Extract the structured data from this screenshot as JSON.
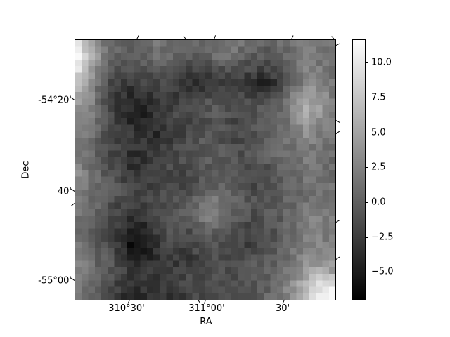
{
  "figure": {
    "background": "#ffffff",
    "colormap": "gray",
    "frame_color": "#000000"
  },
  "chart_data": {
    "type": "heatmap",
    "title": "",
    "xlabel": "RA",
    "ylabel": "Dec",
    "x_tick_labels": [
      "310°30'",
      "311°00'",
      "30'"
    ],
    "y_tick_labels": [
      "-54°20'",
      "40'",
      "-55°00'"
    ],
    "colorbar": {
      "tick_labels": [
        "10.0",
        "7.5",
        "5.0",
        "2.5",
        "0.0",
        "−2.5",
        "−5.0"
      ],
      "vmin": -7.1,
      "vmax": 11.7,
      "orientation": "vertical",
      "top_color": "#fdfdfd",
      "bottom_color": "#000000"
    },
    "grid_rows": 20,
    "grid_cols": 20,
    "render_resolution": 40,
    "noise_amplitude": 1.1,
    "values_grid": [
      [
        9.5,
        5.0,
        1.5,
        0.5,
        0.0,
        0.5,
        1.5,
        1.0,
        0.5,
        0.0,
        1.0,
        2.0,
        1.5,
        0.5,
        0.0,
        1.0,
        1.5,
        2.5,
        2.0,
        1.5
      ],
      [
        10.5,
        6.0,
        1.0,
        0.0,
        -0.5,
        0.0,
        1.0,
        0.5,
        -0.5,
        -1.0,
        0.5,
        1.5,
        0.5,
        -0.5,
        -1.0,
        0.0,
        1.0,
        2.0,
        1.5,
        1.0
      ],
      [
        9.0,
        4.0,
        0.0,
        -1.0,
        -1.5,
        -1.0,
        -0.5,
        -1.0,
        -1.5,
        -2.5,
        -2.0,
        -1.0,
        -1.5,
        -2.0,
        -2.5,
        -1.5,
        0.5,
        2.5,
        2.0,
        1.5
      ],
      [
        7.0,
        3.0,
        -1.0,
        -2.5,
        -3.0,
        -2.5,
        -2.0,
        -2.5,
        -3.5,
        -4.0,
        -3.0,
        -2.5,
        -3.0,
        -4.0,
        -4.5,
        -2.5,
        0.0,
        3.0,
        2.5,
        1.5
      ],
      [
        5.0,
        2.5,
        -1.5,
        -3.0,
        -4.0,
        -3.5,
        -2.5,
        -3.0,
        -2.5,
        -2.0,
        -1.5,
        -1.0,
        -1.5,
        -2.0,
        -2.5,
        -1.0,
        2.0,
        5.0,
        4.0,
        2.0
      ],
      [
        4.0,
        2.0,
        -1.0,
        -3.0,
        -4.5,
        -4.0,
        -3.0,
        -2.0,
        -1.5,
        -1.0,
        -0.5,
        -1.0,
        -1.5,
        -1.0,
        -0.5,
        0.0,
        2.5,
        5.5,
        4.5,
        2.5
      ],
      [
        3.0,
        1.5,
        -0.5,
        -2.5,
        -4.0,
        -4.5,
        -3.5,
        -2.5,
        -2.0,
        -1.5,
        -1.0,
        -1.5,
        -2.5,
        -1.5,
        -0.5,
        0.5,
        2.0,
        4.0,
        3.0,
        2.0
      ],
      [
        2.5,
        1.0,
        -1.0,
        -2.0,
        -3.0,
        -3.5,
        -4.0,
        -3.0,
        -2.0,
        -1.0,
        -0.5,
        -1.5,
        -2.0,
        -1.0,
        0.0,
        0.5,
        1.5,
        3.0,
        2.0,
        1.5
      ],
      [
        2.0,
        0.5,
        -1.5,
        -2.5,
        -3.5,
        -3.0,
        -2.5,
        -2.0,
        -1.5,
        -0.5,
        0.0,
        -1.0,
        -1.5,
        -0.5,
        0.5,
        1.0,
        1.0,
        2.0,
        1.5,
        1.0
      ],
      [
        2.5,
        1.0,
        -1.0,
        -2.0,
        -4.0,
        -3.5,
        -2.0,
        -1.5,
        -1.0,
        -1.5,
        -0.5,
        0.0,
        -0.5,
        -1.5,
        -1.0,
        0.0,
        0.5,
        1.5,
        1.0,
        1.0
      ],
      [
        3.0,
        1.5,
        -0.5,
        -1.5,
        -3.0,
        -2.5,
        -1.5,
        -2.5,
        -2.0,
        -1.0,
        0.0,
        -0.5,
        -1.0,
        -2.0,
        -1.5,
        -0.5,
        0.5,
        1.5,
        1.5,
        1.0
      ],
      [
        2.5,
        1.0,
        0.0,
        -1.0,
        -2.0,
        -3.0,
        -2.0,
        -1.5,
        -1.5,
        -0.5,
        0.5,
        0.0,
        -1.0,
        -1.5,
        -1.0,
        -0.5,
        0.0,
        1.0,
        1.0,
        1.5
      ],
      [
        2.0,
        0.5,
        -0.5,
        -2.0,
        -2.5,
        -2.0,
        -1.5,
        -1.0,
        -0.5,
        1.0,
        2.0,
        1.5,
        0.0,
        -1.0,
        -0.5,
        0.0,
        0.5,
        1.5,
        2.0,
        2.0
      ],
      [
        1.5,
        0.0,
        -1.0,
        -2.5,
        -3.5,
        -3.0,
        -2.0,
        -1.5,
        -0.5,
        1.5,
        2.5,
        1.5,
        -0.5,
        -1.5,
        -1.0,
        -0.5,
        0.5,
        2.0,
        2.5,
        2.0
      ],
      [
        1.0,
        -0.5,
        -1.5,
        -3.0,
        -5.0,
        -4.5,
        -2.5,
        -1.0,
        -1.5,
        -0.5,
        0.0,
        -0.5,
        -1.5,
        -2.0,
        -1.5,
        -0.5,
        0.5,
        2.0,
        2.0,
        1.5
      ],
      [
        1.5,
        0.0,
        -1.0,
        -3.5,
        -6.0,
        -5.5,
        -3.0,
        -2.0,
        -2.5,
        -1.5,
        -1.0,
        -1.5,
        -2.0,
        -2.5,
        -1.5,
        -0.5,
        1.0,
        2.5,
        2.5,
        2.0
      ],
      [
        2.0,
        0.5,
        -0.5,
        -2.5,
        -4.5,
        -5.0,
        -3.5,
        -2.5,
        -3.0,
        -2.0,
        -1.5,
        -2.0,
        -2.5,
        -1.5,
        -1.0,
        0.0,
        1.5,
        3.0,
        3.5,
        3.0
      ],
      [
        2.5,
        1.0,
        0.0,
        -1.5,
        -3.0,
        -3.5,
        -2.5,
        -3.0,
        -2.0,
        -1.5,
        -1.0,
        -1.5,
        -1.0,
        -0.5,
        0.0,
        0.5,
        2.0,
        4.0,
        5.0,
        4.5
      ],
      [
        2.0,
        0.5,
        -1.0,
        -2.5,
        -3.5,
        -3.0,
        -3.5,
        -2.5,
        -2.0,
        -2.5,
        -1.5,
        -1.0,
        -1.5,
        -1.0,
        -0.5,
        1.0,
        3.0,
        6.0,
        8.5,
        9.5
      ],
      [
        1.5,
        0.0,
        -1.5,
        -3.0,
        -4.0,
        -3.5,
        -3.0,
        -3.5,
        -2.5,
        -2.0,
        -2.5,
        -2.0,
        -1.5,
        -1.0,
        0.0,
        1.5,
        3.5,
        7.0,
        10.0,
        11.0
      ]
    ]
  }
}
